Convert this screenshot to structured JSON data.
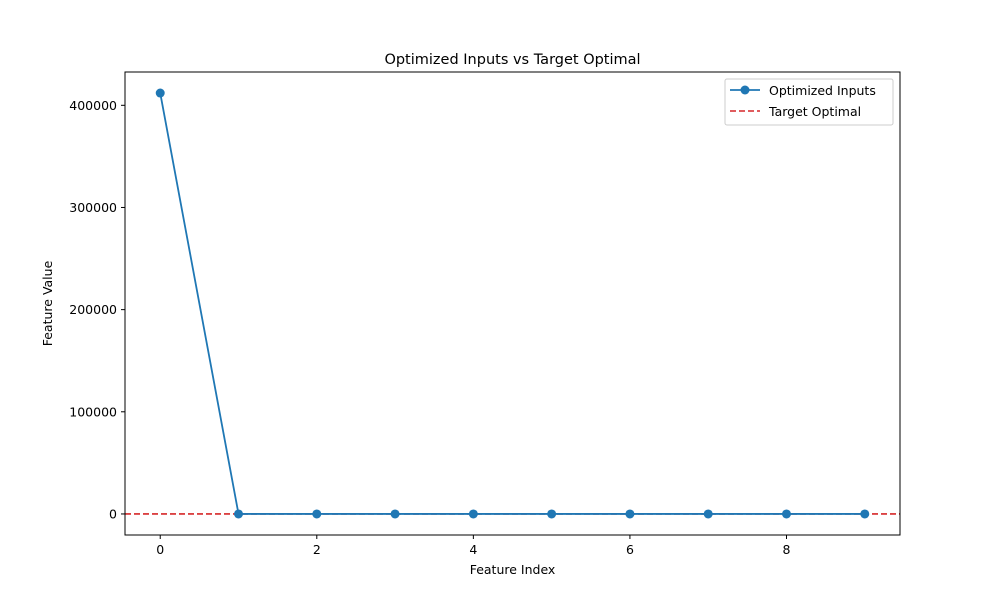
{
  "chart_data": {
    "type": "line",
    "title": "Optimized Inputs vs Target Optimal",
    "xlabel": "Feature Index",
    "ylabel": "Feature Value",
    "xlim": [
      -0.45,
      9.45
    ],
    "ylim": [
      -20600,
      432600
    ],
    "x_ticks": [
      0,
      2,
      4,
      6,
      8
    ],
    "y_ticks": [
      0,
      100000,
      200000,
      300000,
      400000
    ],
    "grid": false,
    "legend_position": "top-right",
    "series": [
      {
        "name": "Optimized Inputs",
        "color": "#1f77b4",
        "style": "solid-with-markers",
        "x": [
          0,
          1,
          2,
          3,
          4,
          5,
          6,
          7,
          8,
          9
        ],
        "y": [
          412000,
          0,
          0,
          0,
          0,
          0,
          0,
          0,
          0,
          0
        ]
      }
    ],
    "reference_lines": [
      {
        "name": "Target Optimal",
        "orientation": "horizontal",
        "y": 0,
        "color": "#d62728",
        "style": "dashed"
      }
    ]
  }
}
